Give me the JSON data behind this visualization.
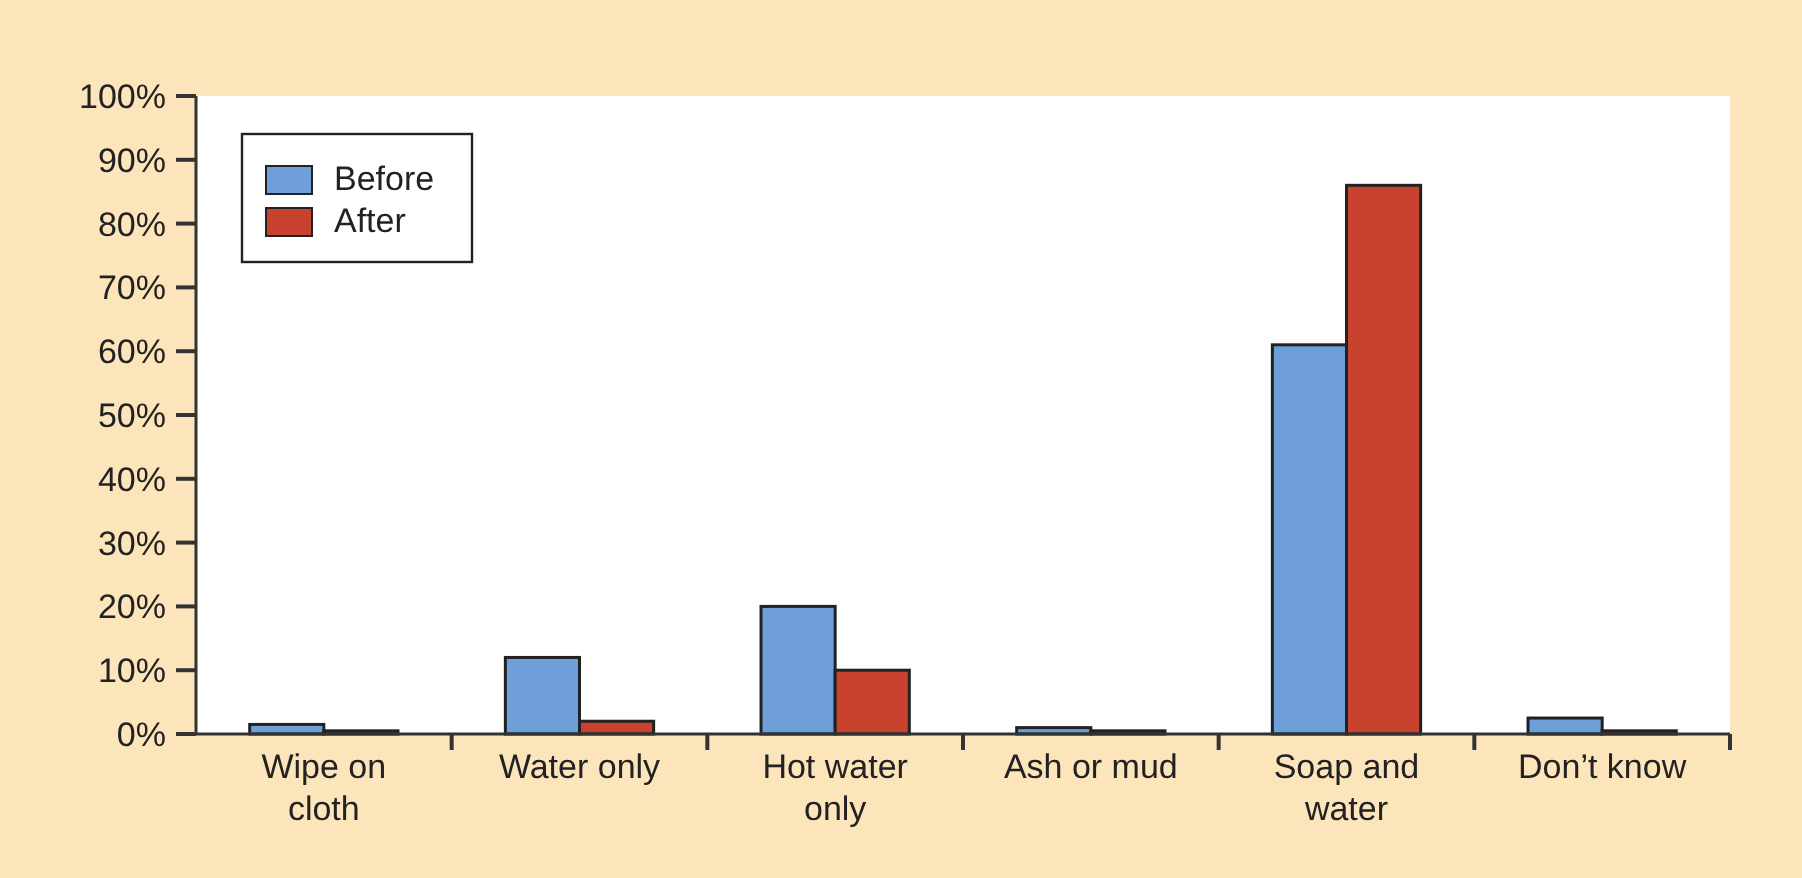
{
  "chart_data": {
    "type": "bar",
    "categories": [
      "Wipe on cloth",
      "Water only",
      "Hot water only",
      "Ash or mud",
      "Soap and water",
      "Don’t know"
    ],
    "series": [
      {
        "name": "Before",
        "color": "#6f9fd8",
        "values": [
          1.5,
          12,
          20,
          1,
          61,
          2.5
        ]
      },
      {
        "name": "After",
        "color": "#c8432e",
        "values": [
          0.5,
          2,
          10,
          0.5,
          86,
          0.5
        ]
      }
    ],
    "ylim": [
      0,
      100
    ],
    "yticks": [
      {
        "value": 0,
        "label": "0%"
      },
      {
        "value": 10,
        "label": "10%"
      },
      {
        "value": 20,
        "label": "20%"
      },
      {
        "value": 30,
        "label": "30%"
      },
      {
        "value": 40,
        "label": "40%"
      },
      {
        "value": 50,
        "label": "50%"
      },
      {
        "value": 60,
        "label": "60%"
      },
      {
        "value": 70,
        "label": "70%"
      },
      {
        "value": 80,
        "label": "80%"
      },
      {
        "value": 90,
        "label": "90%"
      },
      {
        "value": 100,
        "label": "100%"
      }
    ],
    "legend": "top left"
  }
}
